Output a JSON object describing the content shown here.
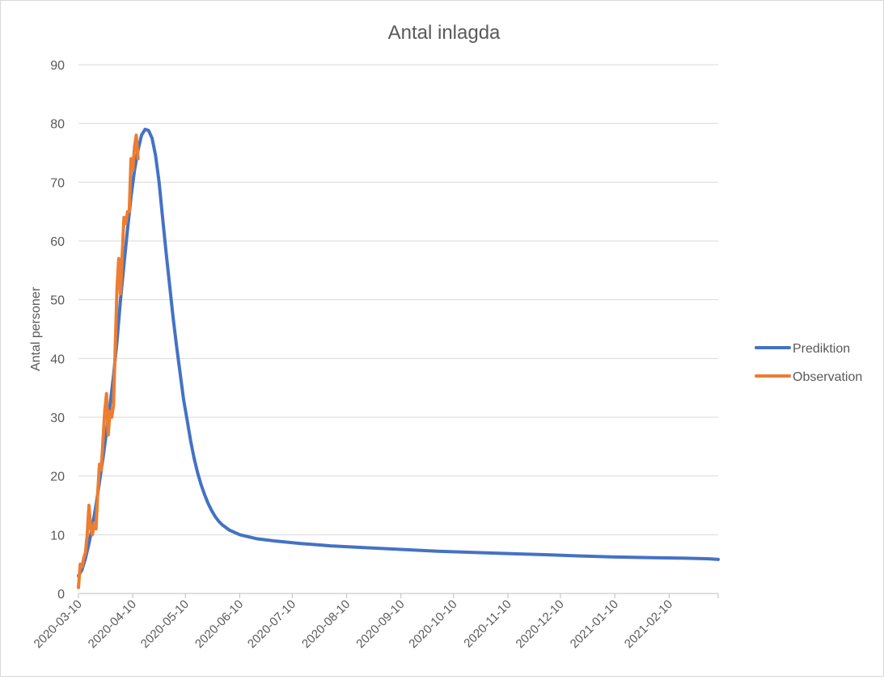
{
  "chart_data": {
    "type": "line",
    "title": "Antal inlagda",
    "xlabel": "",
    "ylabel": "Antal personer",
    "ylim": [
      0,
      90
    ],
    "y_ticks": [
      0,
      10,
      20,
      30,
      40,
      50,
      60,
      70,
      80,
      90
    ],
    "x_range": [
      "2020-03-10",
      "2021-03-10"
    ],
    "x_ticks": [
      "2020-03-10",
      "2020-04-10",
      "2020-05-10",
      "2020-06-10",
      "2020-07-10",
      "2020-08-10",
      "2020-09-10",
      "2020-10-10",
      "2020-11-10",
      "2020-12-10",
      "2021-01-10",
      "2021-02-10"
    ],
    "grid": true,
    "legend_position": "right",
    "series": [
      {
        "name": "Prediktion",
        "color": "#4472C4",
        "points": [
          [
            "2020-03-10",
            3
          ],
          [
            "2020-03-12",
            4
          ],
          [
            "2020-03-14",
            6
          ],
          [
            "2020-03-16",
            8.5
          ],
          [
            "2020-03-18",
            11.5
          ],
          [
            "2020-03-20",
            15
          ],
          [
            "2020-03-22",
            19
          ],
          [
            "2020-03-24",
            23
          ],
          [
            "2020-03-26",
            27.5
          ],
          [
            "2020-03-28",
            32
          ],
          [
            "2020-03-30",
            37
          ],
          [
            "2020-04-01",
            43
          ],
          [
            "2020-04-03",
            50
          ],
          [
            "2020-04-05",
            56
          ],
          [
            "2020-04-07",
            62
          ],
          [
            "2020-04-09",
            67.5
          ],
          [
            "2020-04-11",
            72
          ],
          [
            "2020-04-13",
            75.5
          ],
          [
            "2020-04-15",
            78
          ],
          [
            "2020-04-17",
            79
          ],
          [
            "2020-04-19",
            78.8
          ],
          [
            "2020-04-21",
            77.5
          ],
          [
            "2020-04-23",
            74.5
          ],
          [
            "2020-04-25",
            70
          ],
          [
            "2020-04-27",
            64
          ],
          [
            "2020-04-29",
            58
          ],
          [
            "2020-05-01",
            52.5
          ],
          [
            "2020-05-03",
            47
          ],
          [
            "2020-05-05",
            42
          ],
          [
            "2020-05-07",
            37.5
          ],
          [
            "2020-05-09",
            33
          ],
          [
            "2020-05-11",
            29.5
          ],
          [
            "2020-05-13",
            26
          ],
          [
            "2020-05-15",
            23
          ],
          [
            "2020-05-17",
            20.5
          ],
          [
            "2020-05-19",
            18.5
          ],
          [
            "2020-05-21",
            16.8
          ],
          [
            "2020-05-23",
            15.3
          ],
          [
            "2020-05-25",
            14.1
          ],
          [
            "2020-05-27",
            13.1
          ],
          [
            "2020-05-29",
            12.3
          ],
          [
            "2020-05-31",
            11.7
          ],
          [
            "2020-06-04",
            10.8
          ],
          [
            "2020-06-10",
            10
          ],
          [
            "2020-06-20",
            9.3
          ],
          [
            "2020-07-01",
            8.9
          ],
          [
            "2020-07-15",
            8.5
          ],
          [
            "2020-08-01",
            8.1
          ],
          [
            "2020-08-20",
            7.8
          ],
          [
            "2020-09-10",
            7.5
          ],
          [
            "2020-10-01",
            7.2
          ],
          [
            "2020-10-20",
            7
          ],
          [
            "2020-11-10",
            6.8
          ],
          [
            "2020-12-01",
            6.6
          ],
          [
            "2020-12-20",
            6.4
          ],
          [
            "2021-01-10",
            6.2
          ],
          [
            "2021-02-01",
            6.1
          ],
          [
            "2021-02-20",
            6
          ],
          [
            "2021-03-05",
            5.9
          ],
          [
            "2021-03-10",
            5.8
          ]
        ]
      },
      {
        "name": "Observation",
        "color": "#ED7D31",
        "points": [
          [
            "2020-03-10",
            1
          ],
          [
            "2020-03-11",
            5
          ],
          [
            "2020-03-12",
            4.5
          ],
          [
            "2020-03-13",
            6
          ],
          [
            "2020-03-14",
            7
          ],
          [
            "2020-03-15",
            10
          ],
          [
            "2020-03-16",
            15
          ],
          [
            "2020-03-17",
            11
          ],
          [
            "2020-03-18",
            10
          ],
          [
            "2020-03-19",
            12
          ],
          [
            "2020-03-20",
            11
          ],
          [
            "2020-03-21",
            17
          ],
          [
            "2020-03-22",
            22
          ],
          [
            "2020-03-23",
            21
          ],
          [
            "2020-03-24",
            26
          ],
          [
            "2020-03-25",
            31
          ],
          [
            "2020-03-26",
            34
          ],
          [
            "2020-03-27",
            27
          ],
          [
            "2020-03-28",
            31
          ],
          [
            "2020-03-29",
            30
          ],
          [
            "2020-03-30",
            32
          ],
          [
            "2020-03-31",
            42
          ],
          [
            "2020-04-01",
            52
          ],
          [
            "2020-04-02",
            57
          ],
          [
            "2020-04-03",
            51
          ],
          [
            "2020-04-04",
            58
          ],
          [
            "2020-04-05",
            64
          ],
          [
            "2020-04-06",
            63
          ],
          [
            "2020-04-07",
            65
          ],
          [
            "2020-04-08",
            65
          ],
          [
            "2020-04-09",
            74
          ],
          [
            "2020-04-10",
            72
          ],
          [
            "2020-04-11",
            76
          ],
          [
            "2020-04-12",
            78
          ],
          [
            "2020-04-13",
            74
          ]
        ]
      }
    ]
  }
}
